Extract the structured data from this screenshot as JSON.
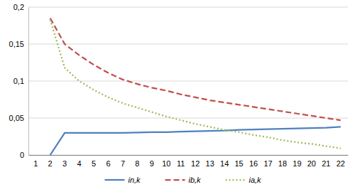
{
  "chart_data": {
    "type": "line",
    "categories": [
      "1",
      "2",
      "3",
      "4",
      "5",
      "6",
      "7",
      "8",
      "9",
      "10",
      "11",
      "12",
      "13",
      "14",
      "15",
      "16",
      "17",
      "18",
      "19",
      "20",
      "21",
      "22"
    ],
    "series": [
      {
        "name": "in,k",
        "color": "#4f81bd",
        "line_style": "solid",
        "values": [
          null,
          0,
          0.03,
          0.03,
          0.03,
          0.03,
          0.03,
          0.0305,
          0.031,
          0.031,
          0.0315,
          0.032,
          0.0325,
          0.033,
          0.034,
          0.0345,
          0.035,
          0.0355,
          0.036,
          0.0365,
          0.037,
          0.038
        ]
      },
      {
        "name": "ib,k",
        "color": "#c0504d",
        "line_style": "dash",
        "values": [
          null,
          0.185,
          0.15,
          0.135,
          0.122,
          0.111,
          0.102,
          0.096,
          0.091,
          0.087,
          0.082,
          0.078,
          0.074,
          0.071,
          0.068,
          0.065,
          0.062,
          0.059,
          0.056,
          0.053,
          0.05,
          0.047
        ]
      },
      {
        "name": "ia,k",
        "color": "#9bbb59",
        "line_style": "dot",
        "values": [
          null,
          0.183,
          0.118,
          0.1,
          0.088,
          0.078,
          0.07,
          0.064,
          0.058,
          0.052,
          0.047,
          0.042,
          0.038,
          0.034,
          0.031,
          0.027,
          0.024,
          0.02,
          0.017,
          0.015,
          0.012,
          0.009
        ]
      }
    ],
    "ylim": [
      0,
      0.2
    ],
    "yticks": [
      0,
      {
        "value": 0.05,
        "label": "0,05"
      },
      {
        "value": 0.1,
        "label": "0,1"
      },
      {
        "value": 0.15,
        "label": "0,15"
      },
      {
        "value": 0.2,
        "label": "0,2"
      }
    ],
    "grid": true,
    "legend": "bottom"
  }
}
